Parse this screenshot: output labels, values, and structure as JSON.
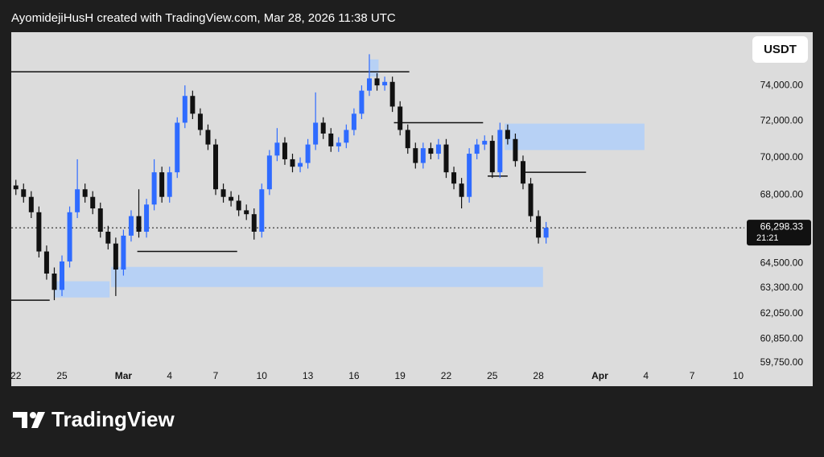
{
  "header": {
    "title": "AyomidejiHusH created with TradingView.com, Mar 28, 2026 11:38 UTC"
  },
  "currency_button": "USDT",
  "brand": "TradingView",
  "chart_data": {
    "type": "candlestick",
    "log_scale": true,
    "up_color": "#2f6bff",
    "down_color": "#111111",
    "zone_color": "#b7d1f5",
    "level_color": "#111111",
    "xlim": [
      -0.3,
      47.4
    ],
    "ylim": [
      59480,
      77100
    ],
    "xticks": [
      {
        "value": 0,
        "label": "22"
      },
      {
        "value": 3,
        "label": "25"
      },
      {
        "value": 7,
        "label": "Mar"
      },
      {
        "value": 10,
        "label": "4"
      },
      {
        "value": 13,
        "label": "7"
      },
      {
        "value": 16,
        "label": "10"
      },
      {
        "value": 19,
        "label": "13"
      },
      {
        "value": 22,
        "label": "16"
      },
      {
        "value": 25,
        "label": "19"
      },
      {
        "value": 28,
        "label": "22"
      },
      {
        "value": 31,
        "label": "25"
      },
      {
        "value": 34,
        "label": "28"
      },
      {
        "value": 38,
        "label": "Apr"
      },
      {
        "value": 41,
        "label": "4"
      },
      {
        "value": 44,
        "label": "7"
      },
      {
        "value": 47,
        "label": "10"
      }
    ],
    "yticks": [
      {
        "value": 74000,
        "label": "74,000.00"
      },
      {
        "value": 72000,
        "label": "72,000.00"
      },
      {
        "value": 70000,
        "label": "70,000.00"
      },
      {
        "value": 68000,
        "label": "68,000.00"
      },
      {
        "value": 64500,
        "label": "64,500.00"
      },
      {
        "value": 63300,
        "label": "63,300.00"
      },
      {
        "value": 62050,
        "label": "62,050.00"
      },
      {
        "value": 60850,
        "label": "60,850.00"
      },
      {
        "value": 59750,
        "label": "59,750.00"
      }
    ],
    "last_price": {
      "value": 66298.33,
      "label": "66,298.33"
    },
    "countdown": "21:21",
    "x": [
      0,
      0.5,
      1,
      1.5,
      2,
      2.5,
      3,
      3.5,
      4,
      4.5,
      5,
      5.5,
      6,
      6.5,
      7,
      7.5,
      8,
      8.5,
      9,
      9.5,
      10,
      10.5,
      11,
      11.5,
      12,
      12.5,
      13,
      13.5,
      14,
      14.5,
      15,
      15.5,
      16,
      16.5,
      17,
      17.5,
      18,
      18.5,
      19,
      19.5,
      20,
      20.5,
      21,
      21.5,
      22,
      22.5,
      23,
      23.5,
      24,
      24.5,
      25,
      25.5,
      26,
      26.5,
      27,
      27.5,
      28,
      28.5,
      29,
      29.5,
      30,
      30.5,
      31,
      31.5,
      32,
      32.5,
      33,
      33.5,
      34,
      34.5
    ],
    "open": [
      68500,
      68300,
      67900,
      67100,
      65100,
      64000,
      63200,
      64600,
      67100,
      68300,
      67900,
      67300,
      66100,
      65500,
      64200,
      65900,
      66900,
      66100,
      67500,
      69200,
      67900,
      69200,
      71900,
      73400,
      72400,
      71500,
      70700,
      68300,
      67900,
      67700,
      67200,
      67000,
      66100,
      68300,
      70100,
      70800,
      69900,
      69500,
      69700,
      70700,
      71900,
      71300,
      70600,
      70800,
      71500,
      72400,
      73700,
      74400,
      74000,
      74200,
      72800,
      71500,
      70500,
      69700,
      70500,
      70200,
      70700,
      69200,
      68600,
      67900,
      70200,
      70700,
      70900,
      69200,
      71500,
      71000,
      69800,
      68600,
      66900,
      65800
    ],
    "high": [
      68800,
      68600,
      68200,
      67400,
      65400,
      64300,
      64900,
      67400,
      69900,
      68600,
      68200,
      67600,
      66400,
      65800,
      66200,
      67200,
      68300,
      67800,
      69900,
      69500,
      69500,
      72200,
      74000,
      73700,
      72700,
      71800,
      71000,
      68600,
      68200,
      68000,
      67500,
      67300,
      68600,
      70400,
      71600,
      71100,
      70200,
      70000,
      71000,
      73600,
      72200,
      71600,
      71100,
      71800,
      72700,
      74000,
      75800,
      74700,
      74500,
      74500,
      73100,
      71800,
      70800,
      70800,
      70800,
      71000,
      71000,
      69500,
      68900,
      70500,
      71000,
      71200,
      71200,
      71900,
      71800,
      71300,
      70100,
      68900,
      67200,
      66600
    ],
    "low": [
      68000,
      67600,
      66800,
      64800,
      63700,
      62700,
      62900,
      64300,
      66800,
      67600,
      67000,
      65800,
      65200,
      62900,
      63900,
      65600,
      65800,
      65800,
      67200,
      67600,
      67600,
      68900,
      71600,
      72100,
      71200,
      70400,
      68000,
      67600,
      67400,
      66900,
      66700,
      65700,
      65800,
      68000,
      69800,
      69600,
      69200,
      69200,
      69400,
      70400,
      71000,
      70300,
      70300,
      70500,
      71200,
      72100,
      73400,
      73700,
      73700,
      72500,
      71200,
      70200,
      69400,
      69400,
      69900,
      69900,
      68900,
      68300,
      67300,
      67600,
      69900,
      70400,
      68900,
      68900,
      70700,
      69500,
      68300,
      66600,
      65500,
      65500
    ],
    "close": [
      68300,
      67900,
      67100,
      65100,
      64000,
      63200,
      64600,
      67100,
      68300,
      67900,
      67300,
      66100,
      65500,
      64200,
      65900,
      66900,
      66100,
      67500,
      69200,
      67900,
      69200,
      71900,
      73400,
      72400,
      71500,
      70700,
      68300,
      67900,
      67700,
      67200,
      67000,
      66100,
      68300,
      70100,
      70800,
      69900,
      69500,
      69700,
      70700,
      71900,
      71300,
      70600,
      70800,
      71500,
      72400,
      73700,
      74400,
      74000,
      74200,
      72800,
      71500,
      70500,
      69700,
      70500,
      70200,
      70700,
      69200,
      68600,
      67900,
      70200,
      70700,
      70900,
      69200,
      71500,
      71000,
      69800,
      68600,
      66900,
      65800,
      66298.33
    ],
    "levels": [
      {
        "price": 74780,
        "x1": -0.3,
        "x2": 25.6
      },
      {
        "price": 71900,
        "x1": 24.6,
        "x2": 30.4
      },
      {
        "price": 65100,
        "x1": 7.9,
        "x2": 14.4
      },
      {
        "price": 62700,
        "x1": -0.3,
        "x2": 2.2
      },
      {
        "price": 69000,
        "x1": 30.7,
        "x2": 32
      },
      {
        "price": 69200,
        "x1": 33,
        "x2": 37.1
      }
    ],
    "zones": [
      {
        "top": 71850,
        "bottom": 70400,
        "x1": 31.8,
        "x2": 40.9
      },
      {
        "top": 64330,
        "bottom": 63340,
        "x1": 6.2,
        "x2": 34.3
      },
      {
        "top": 63620,
        "bottom": 62830,
        "x1": 2.5,
        "x2": 6.1
      },
      {
        "top": 75500,
        "bottom": 74500,
        "x1": 23,
        "x2": 23.6
      }
    ]
  }
}
